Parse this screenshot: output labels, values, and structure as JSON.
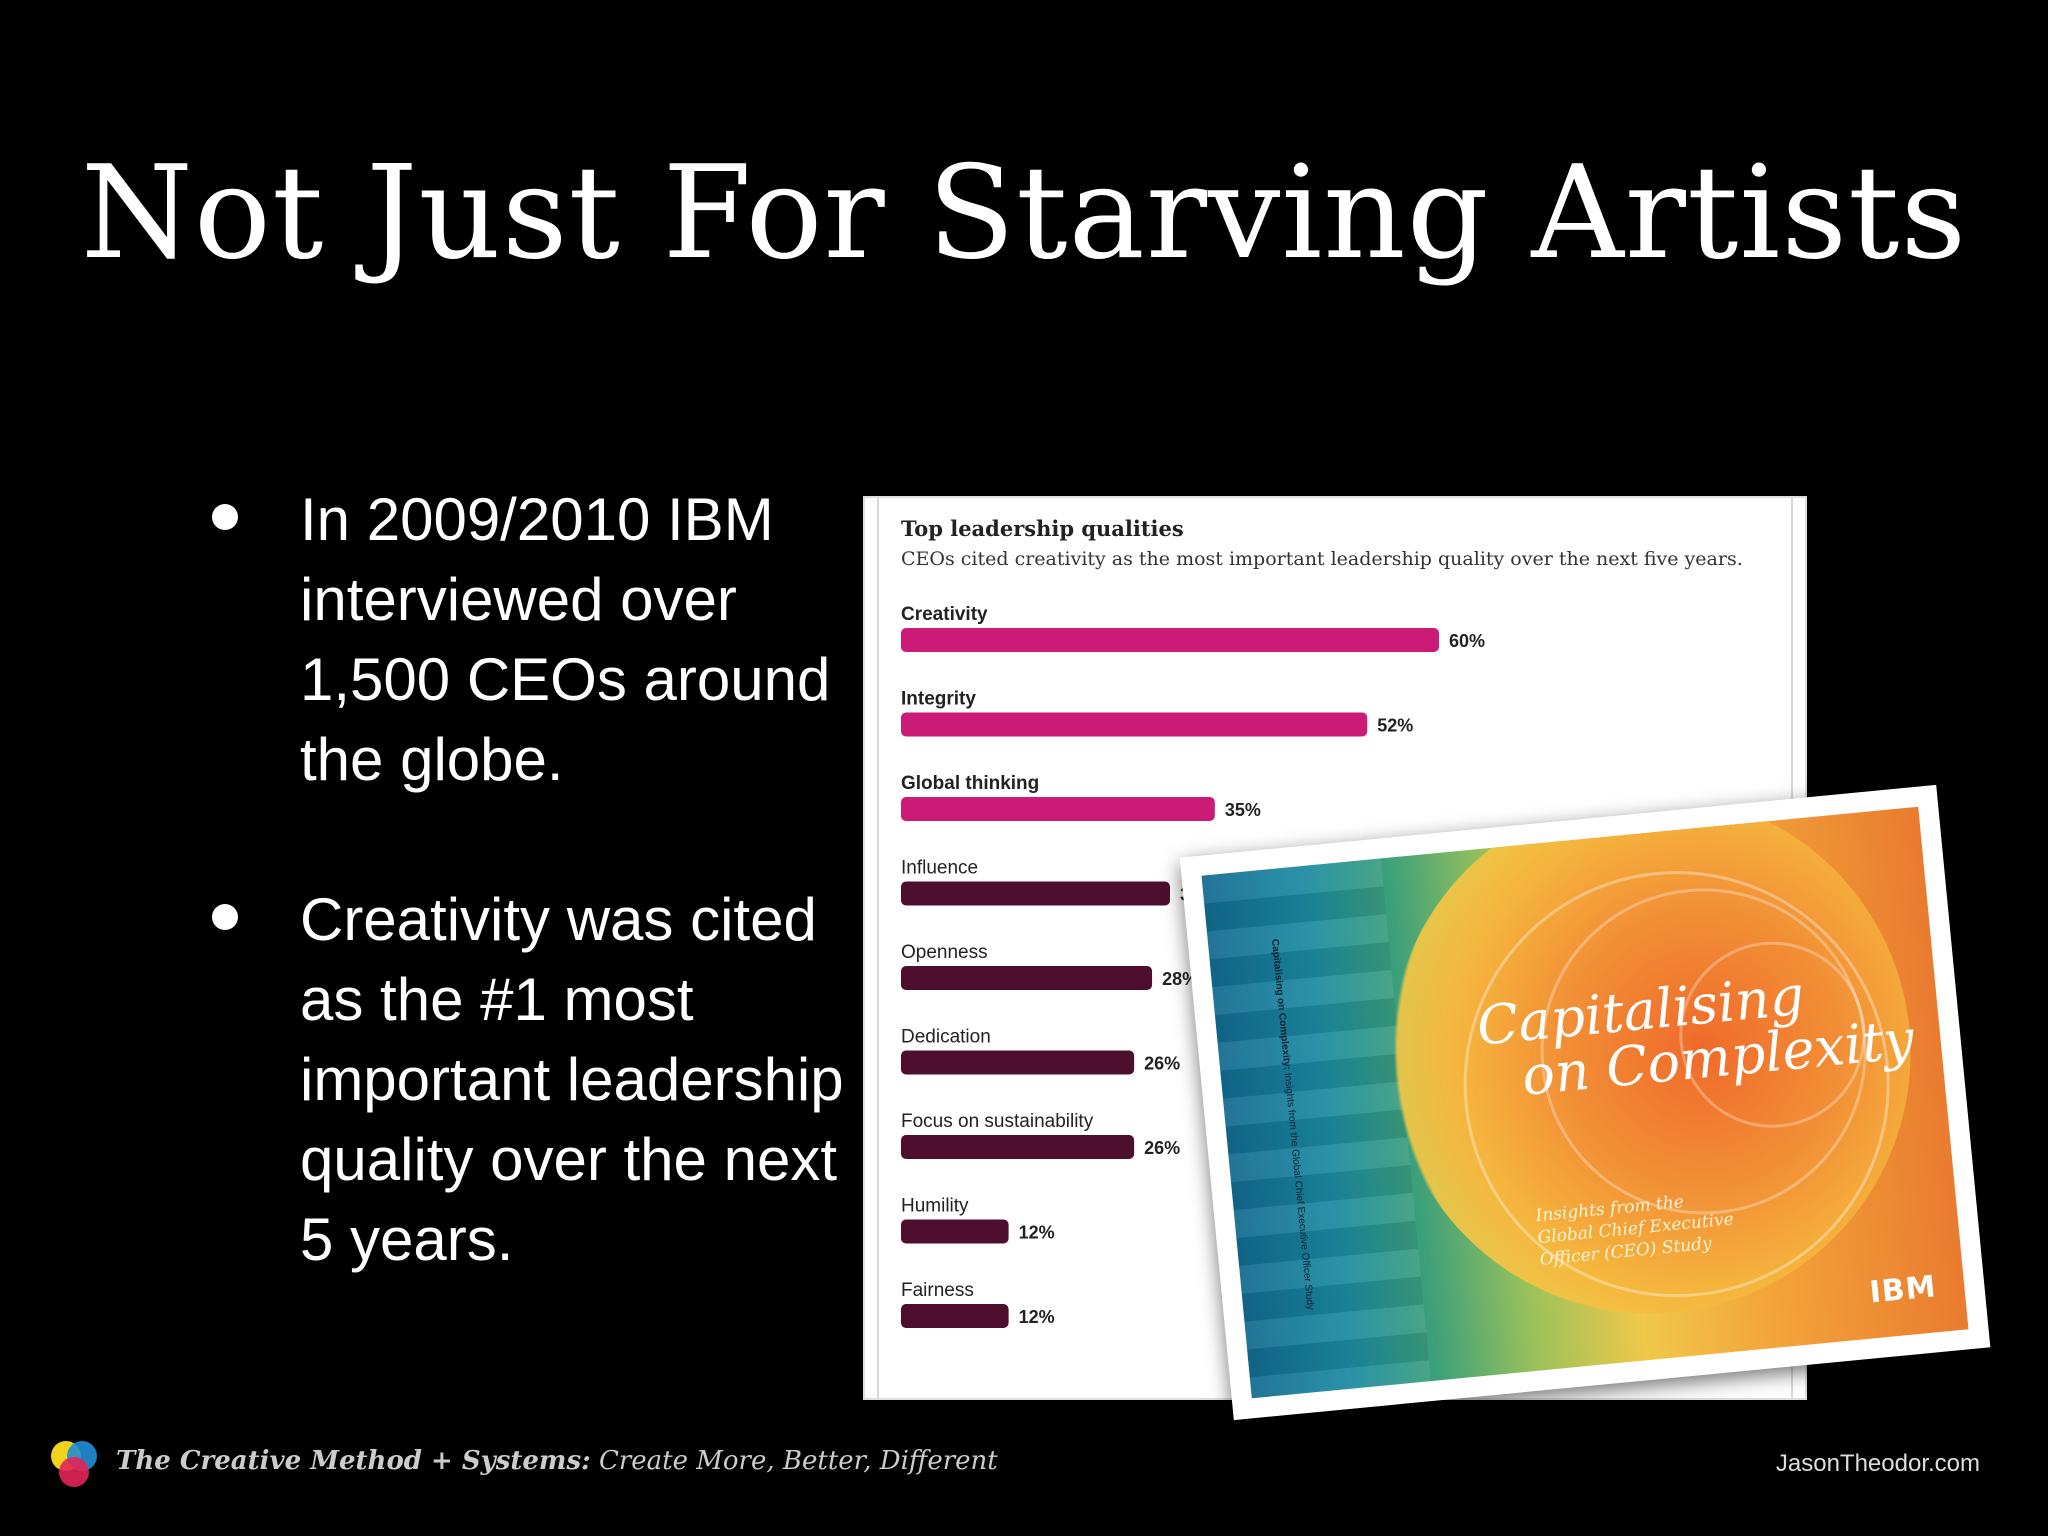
{
  "slide": {
    "title": "Not Just For Starving Artists",
    "bullets": [
      "In 2009/2010 IBM interviewed over 1,500 CEOs around the globe.",
      "Creativity was cited as the #1 most important leadership quality over the next 5 years."
    ]
  },
  "chart_data": {
    "type": "bar",
    "orientation": "horizontal",
    "title": "Top leadership qualities",
    "subtitle": "CEOs cited creativity as the most important leadership quality over the next five years.",
    "categories": [
      "Creativity",
      "Integrity",
      "Global thinking",
      "Influence",
      "Openness",
      "Dedication",
      "Focus on sustainability",
      "Humility",
      "Fairness"
    ],
    "values": [
      60,
      52,
      35,
      30,
      28,
      26,
      26,
      12,
      12
    ],
    "value_labels": [
      "60%",
      "52%",
      "35%",
      "30%",
      "28%",
      "26%",
      "26%",
      "12%",
      "12%"
    ],
    "highlight_count": 3,
    "colors": {
      "highlight": "#cc1a77",
      "default": "#4e0f2f"
    },
    "xlim": [
      0,
      60
    ],
    "grid": false
  },
  "book": {
    "spine_bold": "Capitalising on Complexity:",
    "spine_rest": " Insights from the Global Chief Executive Officer Study",
    "title_line1": "Capitalising",
    "title_line2": "on Complexity",
    "subtitle": "Insights from the\nGlobal Chief Executive\nOfficer (CEO) Study",
    "logo": "IBM"
  },
  "footer": {
    "series_bold": "The Creative Method + Systems:",
    "series_rest": " Create More, Better, Different",
    "site": "JasonTheodor.com"
  }
}
